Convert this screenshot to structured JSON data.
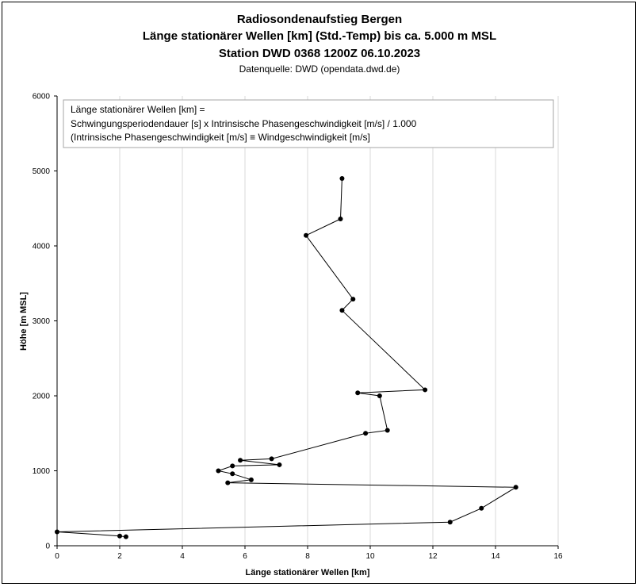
{
  "chart_data": {
    "type": "line",
    "title": "Radiosondenaufstieg Bergen",
    "subtitle_lines": [
      "Länge stationärer Wellen [km] (Std.-Temp) bis ca. 5.000 m MSL",
      "Station DWD 0368 1200Z 06.10.2023"
    ],
    "source": "Datenquelle: DWD (opendata.dwd.de)",
    "xlabel": "Länge stationärer Wellen [km]",
    "ylabel": "Höhe [m MSL]",
    "xlim": [
      0,
      16
    ],
    "ylim": [
      0,
      6000
    ],
    "xticks": [
      "0",
      "2",
      "4",
      "6",
      "8",
      "10",
      "12",
      "14",
      "16"
    ],
    "yticks": [
      "0",
      "1000",
      "2000",
      "3000",
      "4000",
      "5000",
      "6000"
    ],
    "grid": "vertical",
    "annotation": [
      "Länge stationärer Wellen [km] =",
      "Schwingungsperiodendauer [s] x Intrinsische Phasengeschwindigkeit [m/s]  / 1.000",
      "(Intrinsische Phasengeschwindigkeit [m/s] ≡ Windgeschwindigkeit [m/s]"
    ],
    "series": [
      {
        "points": [
          [
            2.2,
            120
          ],
          [
            2.0,
            130
          ],
          [
            0.0,
            185
          ],
          [
            12.55,
            315
          ],
          [
            13.55,
            500
          ],
          [
            14.65,
            780
          ],
          [
            5.45,
            840
          ],
          [
            6.2,
            880
          ],
          [
            5.6,
            960
          ],
          [
            5.15,
            1000
          ],
          [
            5.6,
            1065
          ],
          [
            7.1,
            1080
          ],
          [
            5.85,
            1140
          ],
          [
            6.85,
            1160
          ],
          [
            9.85,
            1500
          ],
          [
            10.55,
            1540
          ],
          [
            10.3,
            2000
          ],
          [
            9.6,
            2040
          ],
          [
            11.75,
            2080
          ],
          [
            9.1,
            3140
          ],
          [
            9.45,
            3290
          ],
          [
            7.95,
            4140
          ],
          [
            9.05,
            4360
          ],
          [
            9.1,
            4900
          ]
        ]
      }
    ]
  }
}
